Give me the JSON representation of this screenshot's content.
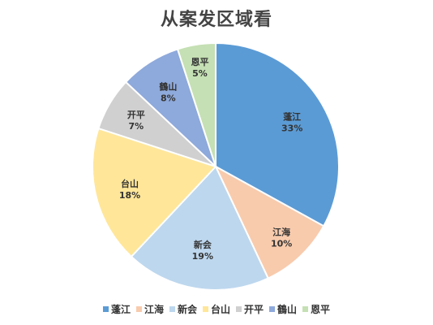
{
  "chart_data": {
    "type": "pie",
    "title": "从案发区域看",
    "categories": [
      "蓬江",
      "江海",
      "新会",
      "台山",
      "开平",
      "鶴山",
      "恩平"
    ],
    "values": [
      33,
      10,
      19,
      18,
      7,
      8,
      5
    ],
    "value_labels": [
      "33%",
      "10%",
      "19%",
      "18%",
      "7%",
      "8%",
      "5%"
    ],
    "colors": [
      "#5B9BD5",
      "#F8CBAD",
      "#BDD7EE",
      "#FFE699",
      "#D0D0D0",
      "#8EA9DB",
      "#C5E0B4"
    ],
    "legend_position": "bottom",
    "start_angle_deg": 0,
    "direction": "clockwise"
  }
}
